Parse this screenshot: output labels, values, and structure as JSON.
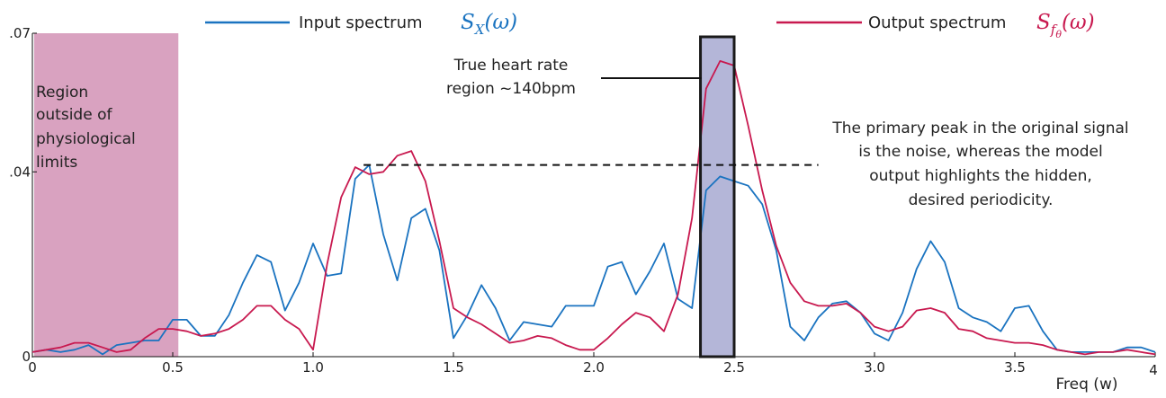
{
  "chart_data": {
    "type": "line",
    "xlabel": "Freq (w)",
    "ylabel": "",
    "xlim": [
      0,
      4
    ],
    "ylim": [
      0,
      0.07
    ],
    "x_ticks": [
      "0",
      "0.5",
      "1.0",
      "1.5",
      "2.0",
      "2.5",
      "3.0",
      "3.5",
      "4"
    ],
    "y_ticks": [
      ".07",
      ".04",
      "0"
    ],
    "x_tick_values": [
      0,
      0.5,
      1.0,
      1.5,
      2.0,
      2.5,
      3.0,
      3.5,
      4
    ],
    "y_tick_values": [
      0.07,
      0.04,
      0
    ],
    "grid": false,
    "legend": [
      {
        "label": "Input spectrum",
        "math": "S",
        "sub": "X",
        "arg": "(ω)",
        "color": "#1a73c0"
      },
      {
        "label": "Output spectrum",
        "math": "S",
        "sub": "f",
        "subsub": "θ",
        "arg": "(ω)",
        "color": "#c8194f"
      }
    ],
    "series": [
      {
        "name": "Input spectrum",
        "color": "#1a73c0",
        "x": [
          0,
          0.05,
          0.1,
          0.15,
          0.2,
          0.25,
          0.3,
          0.35,
          0.4,
          0.45,
          0.5,
          0.55,
          0.6,
          0.65,
          0.7,
          0.75,
          0.8,
          0.85,
          0.9,
          0.95,
          1.0,
          1.05,
          1.1,
          1.15,
          1.2,
          1.25,
          1.3,
          1.35,
          1.4,
          1.45,
          1.5,
          1.55,
          1.6,
          1.65,
          1.7,
          1.75,
          1.8,
          1.85,
          1.9,
          1.95,
          2.0,
          2.05,
          2.1,
          2.15,
          2.2,
          2.25,
          2.3,
          2.35,
          2.4,
          2.45,
          2.5,
          2.55,
          2.6,
          2.65,
          2.7,
          2.75,
          2.8,
          2.85,
          2.9,
          2.95,
          3.0,
          3.05,
          3.1,
          3.15,
          3.2,
          3.25,
          3.3,
          3.35,
          3.4,
          3.45,
          3.5,
          3.55,
          3.6,
          3.65,
          3.7,
          3.75,
          3.8,
          3.85,
          3.9,
          3.95,
          4.0
        ],
        "values": [
          0.001,
          0.0015,
          0.001,
          0.0015,
          0.0025,
          0.0005,
          0.0025,
          0.003,
          0.0035,
          0.0035,
          0.008,
          0.008,
          0.0045,
          0.0045,
          0.009,
          0.016,
          0.022,
          0.0205,
          0.01,
          0.016,
          0.0245,
          0.0175,
          0.018,
          0.0385,
          0.0415,
          0.0265,
          0.0165,
          0.03,
          0.032,
          0.023,
          0.004,
          0.009,
          0.0155,
          0.0105,
          0.0035,
          0.0075,
          0.007,
          0.0065,
          0.011,
          0.011,
          0.011,
          0.0195,
          0.0205,
          0.0135,
          0.0185,
          0.0245,
          0.0125,
          0.0105,
          0.036,
          0.039,
          0.038,
          0.037,
          0.033,
          0.023,
          0.0065,
          0.0035,
          0.0085,
          0.0115,
          0.012,
          0.0095,
          0.005,
          0.0035,
          0.0095,
          0.019,
          0.025,
          0.0205,
          0.0105,
          0.0085,
          0.0075,
          0.0055,
          0.0105,
          0.011,
          0.0055,
          0.0015,
          0.001,
          0.001,
          0.001,
          0.001,
          0.002,
          0.002,
          0.001
        ]
      },
      {
        "name": "Output spectrum",
        "color": "#c8194f",
        "x": [
          0,
          0.05,
          0.1,
          0.15,
          0.2,
          0.25,
          0.3,
          0.35,
          0.4,
          0.45,
          0.5,
          0.55,
          0.6,
          0.65,
          0.7,
          0.75,
          0.8,
          0.85,
          0.9,
          0.95,
          1.0,
          1.05,
          1.1,
          1.15,
          1.2,
          1.25,
          1.3,
          1.35,
          1.4,
          1.45,
          1.5,
          1.55,
          1.6,
          1.65,
          1.7,
          1.75,
          1.8,
          1.85,
          1.9,
          1.95,
          2.0,
          2.05,
          2.1,
          2.15,
          2.2,
          2.25,
          2.3,
          2.35,
          2.4,
          2.45,
          2.5,
          2.55,
          2.6,
          2.65,
          2.7,
          2.75,
          2.8,
          2.85,
          2.9,
          2.95,
          3.0,
          3.05,
          3.1,
          3.15,
          3.2,
          3.25,
          3.3,
          3.35,
          3.4,
          3.45,
          3.5,
          3.55,
          3.6,
          3.65,
          3.7,
          3.75,
          3.8,
          3.85,
          3.9,
          3.95,
          4.0
        ],
        "values": [
          0.001,
          0.0015,
          0.002,
          0.003,
          0.003,
          0.002,
          0.001,
          0.0015,
          0.004,
          0.006,
          0.006,
          0.0055,
          0.0045,
          0.005,
          0.006,
          0.008,
          0.011,
          0.011,
          0.008,
          0.006,
          0.0015,
          0.02,
          0.0345,
          0.041,
          0.0395,
          0.04,
          0.0435,
          0.0445,
          0.038,
          0.025,
          0.0105,
          0.0085,
          0.007,
          0.005,
          0.003,
          0.0035,
          0.0045,
          0.004,
          0.0025,
          0.0015,
          0.0015,
          0.004,
          0.007,
          0.0095,
          0.0085,
          0.0055,
          0.0135,
          0.03,
          0.058,
          0.064,
          0.063,
          0.05,
          0.036,
          0.024,
          0.016,
          0.012,
          0.011,
          0.011,
          0.0115,
          0.0095,
          0.0065,
          0.0055,
          0.0065,
          0.01,
          0.0105,
          0.0095,
          0.006,
          0.0055,
          0.004,
          0.0035,
          0.003,
          0.003,
          0.0025,
          0.0015,
          0.001,
          0.0005,
          0.001,
          0.001,
          0.0015,
          0.001,
          0.0005
        ]
      }
    ],
    "regions": [
      {
        "label": "Region outside of physiological limits",
        "x_range": [
          0,
          0.52
        ],
        "color": "#d9a2c0"
      },
      {
        "label": "True heart rate region ~140bpm",
        "x_range": [
          2.38,
          2.5
        ],
        "y_top": 0.07,
        "color": "#b4b6d8"
      }
    ],
    "reference_line": {
      "y": 0.0415,
      "x_range": [
        1.18,
        2.8
      ],
      "style": "dashed"
    },
    "annotations": {
      "region_outside": [
        "Region",
        "outside of",
        "physiological",
        "limits"
      ],
      "heart_rate": [
        "True heart rate",
        "region ~140bpm"
      ],
      "primary_peak": [
        "The primary peak in the original signal",
        "is the noise, whereas the model",
        "output highlights the hidden,",
        "desired periodicity."
      ]
    }
  }
}
